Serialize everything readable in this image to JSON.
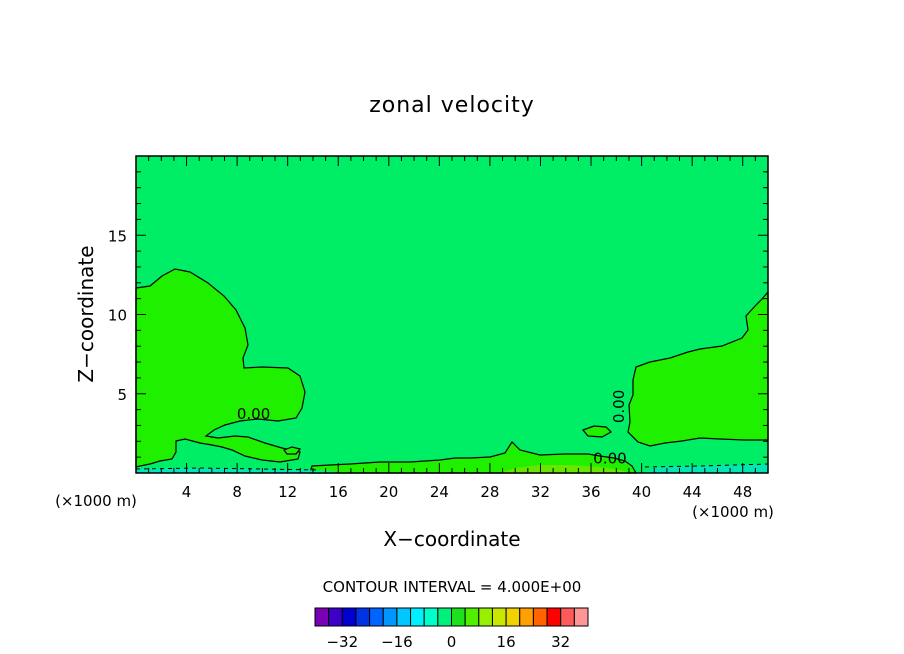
{
  "chart_data": {
    "type": "contour",
    "title": "zonal velocity",
    "xlabel": "X−coordinate",
    "ylabel": "Z−coordinate",
    "x_unit_left": "(×1000 m)",
    "x_unit_right": "(×1000 m)",
    "xlim": [
      0,
      50
    ],
    "ylim": [
      0,
      20
    ],
    "x_ticks": [
      4,
      8,
      12,
      16,
      20,
      24,
      28,
      32,
      36,
      40,
      44,
      48
    ],
    "y_ticks": [
      5,
      10,
      15
    ],
    "contour_labels": [
      {
        "text": "0.00",
        "x": 9.3,
        "y": 3.4
      },
      {
        "text": "0.00",
        "x": 37.5,
        "y": 0.6
      },
      {
        "text": "0.00",
        "x": 38.6,
        "y": 4.2
      }
    ],
    "contour_interval_text": "CONTOUR INTERVAL = 4.000E+00",
    "colorbar": {
      "levels": [
        -36,
        -32,
        -28,
        -24,
        -20,
        -16,
        -12,
        -8,
        -4,
        0,
        4,
        8,
        12,
        16,
        20,
        24,
        28,
        32,
        36
      ],
      "colors": [
        "#7a00b4",
        "#3c00c8",
        "#0000d2",
        "#0032e6",
        "#0064ff",
        "#0096ff",
        "#00c8ff",
        "#00f0ff",
        "#00ffc8",
        "#00f07c",
        "#1ee11e",
        "#50f000",
        "#96f000",
        "#c8e600",
        "#f0d200",
        "#ffa000",
        "#ff6400",
        "#ff0000",
        "#ff5a5a",
        "#ff9696"
      ],
      "tick_labels": [
        "−32",
        "−16",
        "0",
        "16",
        "32"
      ]
    },
    "fill_colors": {
      "background": "#00ee66",
      "positive": "#1ef000",
      "surface_low": "#00e6b4",
      "surface_high": "#66e600"
    }
  }
}
